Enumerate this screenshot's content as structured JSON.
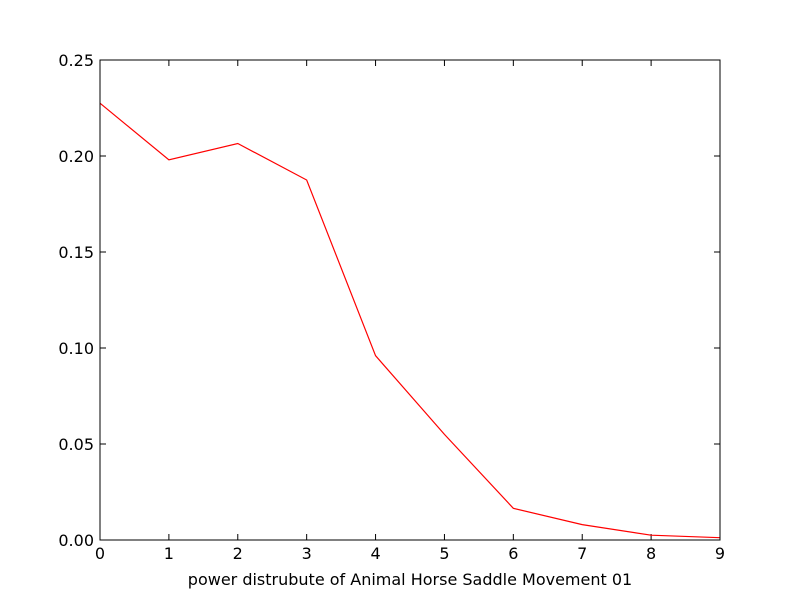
{
  "chart_data": {
    "type": "line",
    "title": "",
    "xlabel": "power distrubute of Animal Horse Saddle Movement 01",
    "ylabel": "",
    "x": [
      0,
      1,
      2,
      3,
      4,
      5,
      6,
      7,
      8,
      9
    ],
    "series": [
      {
        "color": "#ff0000",
        "values": [
          0.2275,
          0.198,
          0.2065,
          0.1875,
          0.096,
          0.055,
          0.0165,
          0.008,
          0.0025,
          0.0012
        ]
      }
    ],
    "xlim": [
      0,
      9
    ],
    "ylim": [
      0,
      0.25
    ],
    "xticks": [
      "0",
      "1",
      "2",
      "3",
      "4",
      "5",
      "6",
      "7",
      "8",
      "9"
    ],
    "yticks": [
      "0.00",
      "0.05",
      "0.10",
      "0.15",
      "0.20",
      "0.25"
    ],
    "grid": false,
    "legend": "none"
  }
}
